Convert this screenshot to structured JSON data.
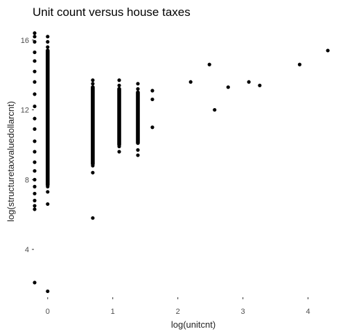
{
  "chart_data": {
    "type": "scatter",
    "title": "Unit count versus house taxes",
    "xlabel": "log(unitcnt)",
    "ylabel": "log(structuretaxvaluedollarcnt)",
    "xlim": [
      -0.2,
      4.42
    ],
    "ylim": [
      1.3,
      16.55
    ],
    "xticks": [
      0,
      1,
      2,
      3,
      4
    ],
    "yticks": [
      4,
      8,
      12,
      16
    ],
    "grid": false,
    "legend": "none",
    "point_color": "#000000",
    "dense_columns": [
      {
        "x": 0,
        "ymin": 7.7,
        "ymax": 15.4
      },
      {
        "x": 0.693,
        "ymin": 8.9,
        "ymax": 13.3
      },
      {
        "x": 1.099,
        "ymin": 10.0,
        "ymax": 13.2
      },
      {
        "x": 1.386,
        "ymin": 10.1,
        "ymax": 13.0
      }
    ],
    "points": [
      {
        "x": -0.2,
        "y": 16.4
      },
      {
        "x": -0.2,
        "y": 16.2
      },
      {
        "x": -0.2,
        "y": 15.9
      },
      {
        "x": -0.2,
        "y": 15.3
      },
      {
        "x": -0.2,
        "y": 14.8
      },
      {
        "x": -0.2,
        "y": 14.2
      },
      {
        "x": -0.2,
        "y": 13.6
      },
      {
        "x": -0.2,
        "y": 12.9
      },
      {
        "x": -0.2,
        "y": 12.2
      },
      {
        "x": -0.2,
        "y": 11.5
      },
      {
        "x": -0.2,
        "y": 10.9
      },
      {
        "x": -0.2,
        "y": 10.2
      },
      {
        "x": -0.2,
        "y": 9.6
      },
      {
        "x": -0.2,
        "y": 9.0
      },
      {
        "x": -0.2,
        "y": 8.5
      },
      {
        "x": -0.2,
        "y": 8.0
      },
      {
        "x": -0.2,
        "y": 7.6
      },
      {
        "x": -0.2,
        "y": 7.2
      },
      {
        "x": -0.2,
        "y": 6.8
      },
      {
        "x": -0.2,
        "y": 6.5
      },
      {
        "x": -0.2,
        "y": 6.3
      },
      {
        "x": -0.2,
        "y": 2.1
      },
      {
        "x": 0,
        "y": 16.2
      },
      {
        "x": 0,
        "y": 15.9
      },
      {
        "x": 0,
        "y": 15.6
      },
      {
        "x": 0,
        "y": 7.6
      },
      {
        "x": 0,
        "y": 7.3
      },
      {
        "x": 0,
        "y": 6.6
      },
      {
        "x": 0,
        "y": 1.6
      },
      {
        "x": 0.693,
        "y": 13.7
      },
      {
        "x": 0.693,
        "y": 13.5
      },
      {
        "x": 0.693,
        "y": 8.8
      },
      {
        "x": 0.693,
        "y": 8.4
      },
      {
        "x": 0.693,
        "y": 5.8
      },
      {
        "x": 1.099,
        "y": 13.7
      },
      {
        "x": 1.099,
        "y": 13.4
      },
      {
        "x": 1.099,
        "y": 9.9
      },
      {
        "x": 1.099,
        "y": 9.6
      },
      {
        "x": 1.386,
        "y": 13.5
      },
      {
        "x": 1.386,
        "y": 13.2
      },
      {
        "x": 1.386,
        "y": 9.7
      },
      {
        "x": 1.386,
        "y": 9.4
      },
      {
        "x": 1.609,
        "y": 13.1
      },
      {
        "x": 1.609,
        "y": 12.6
      },
      {
        "x": 1.609,
        "y": 11.0
      },
      {
        "x": 2.197,
        "y": 13.6
      },
      {
        "x": 2.485,
        "y": 14.6
      },
      {
        "x": 2.565,
        "y": 12.0
      },
      {
        "x": 2.773,
        "y": 13.3
      },
      {
        "x": 3.091,
        "y": 13.6
      },
      {
        "x": 3.258,
        "y": 13.4
      },
      {
        "x": 3.871,
        "y": 14.6
      },
      {
        "x": 4.304,
        "y": 15.4
      }
    ]
  }
}
